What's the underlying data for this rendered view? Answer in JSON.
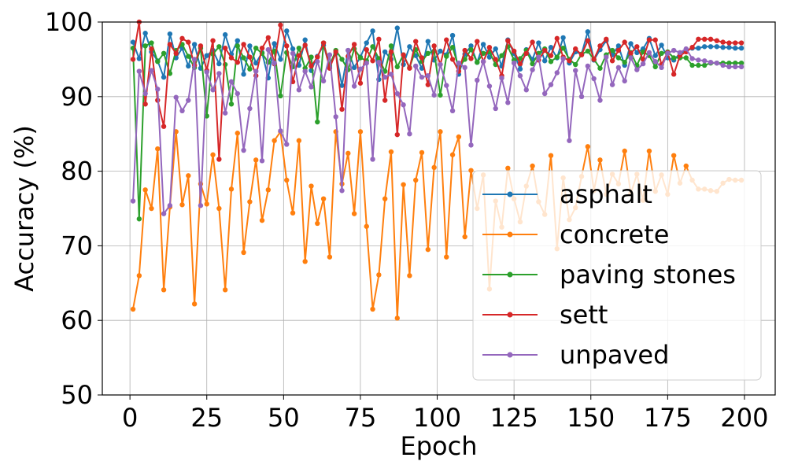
{
  "chart_data": {
    "type": "line",
    "title": "",
    "xlabel": "Epoch",
    "ylabel": "Accuracy (%)",
    "xlim": [
      -9,
      210
    ],
    "ylim": [
      50,
      100
    ],
    "xticks": [
      0,
      25,
      50,
      75,
      100,
      125,
      150,
      175,
      200
    ],
    "yticks": [
      50,
      60,
      70,
      80,
      90,
      100
    ],
    "grid": true,
    "legend": "lower-right",
    "markers": true,
    "series": [
      {
        "name": "asphalt",
        "color": "#1f77b4",
        "x": [
          1,
          3,
          5,
          7,
          9,
          11,
          13,
          15,
          17,
          19,
          21,
          23,
          25,
          27,
          29,
          31,
          33,
          35,
          37,
          39,
          41,
          43,
          45,
          47,
          49,
          51,
          53,
          55,
          57,
          59,
          61,
          63,
          65,
          67,
          69,
          71,
          73,
          75,
          77,
          79,
          81,
          83,
          85,
          87,
          89,
          91,
          93,
          95,
          97,
          99,
          101,
          103,
          105,
          107,
          109,
          111,
          113,
          115,
          117,
          119,
          121,
          123,
          125,
          127,
          129,
          131,
          133,
          135,
          137,
          139,
          141,
          143,
          145,
          147,
          149,
          151,
          153,
          155,
          157,
          159,
          161,
          163,
          165,
          167,
          169,
          171,
          173,
          175,
          177,
          179,
          181,
          183,
          185,
          187,
          189,
          191,
          193,
          195,
          197,
          199
        ],
        "y": [
          97.3,
          95.1,
          98.5,
          96.0,
          94.8,
          92.6,
          98.4,
          95.2,
          96.5,
          94.1,
          97.0,
          93.8,
          95.5,
          96.2,
          94.4,
          98.3,
          95.7,
          97.5,
          93.0,
          96.8,
          94.5,
          95.9,
          92.5,
          97.1,
          95.0,
          98.8,
          96.4,
          94.2,
          97.6,
          93.5,
          95.4,
          96.9,
          94.0,
          95.8,
          91.5,
          96.2,
          93.9,
          95.3,
          97.2,
          98.8,
          92.3,
          96.0,
          95.0,
          99.2,
          94.3,
          96.7,
          95.5,
          93.8,
          97.4,
          94.9,
          96.1,
          95.6,
          98.2,
          93.0,
          95.7,
          96.8,
          94.6,
          97.0,
          95.3,
          96.4,
          94.1,
          97.6,
          95.8,
          93.7,
          96.3,
          95.0,
          97.2,
          94.8,
          96.6,
          95.2,
          97.9,
          94.5,
          96.0,
          95.7,
          98.7,
          94.9,
          96.3,
          97.5,
          95.6,
          96.8,
          94.2,
          97.1,
          95.9,
          96.4,
          97.8,
          95.5,
          96.9,
          95.2,
          94.9,
          95.8,
          96.2,
          96.5,
          96.5,
          96.7,
          96.7,
          96.7,
          96.6,
          96.6,
          96.5,
          96.5
        ]
      },
      {
        "name": "concrete",
        "color": "#ff7f0e",
        "x": [
          1,
          3,
          5,
          7,
          9,
          11,
          13,
          15,
          17,
          19,
          21,
          23,
          25,
          27,
          29,
          31,
          33,
          35,
          37,
          39,
          41,
          43,
          45,
          47,
          49,
          51,
          53,
          55,
          57,
          59,
          61,
          63,
          65,
          67,
          69,
          71,
          73,
          75,
          77,
          79,
          81,
          83,
          85,
          87,
          89,
          91,
          93,
          95,
          97,
          99,
          101,
          103,
          105,
          107,
          109,
          111,
          113,
          115,
          117,
          119,
          121,
          123,
          125,
          127,
          129,
          131,
          133,
          135,
          137,
          139,
          141,
          143,
          145,
          147,
          149,
          151,
          153,
          155,
          157,
          159,
          161,
          163,
          165,
          167,
          169,
          171,
          173,
          175,
          177,
          179,
          181,
          183,
          185,
          187,
          189,
          191,
          193,
          195,
          197,
          199
        ],
        "y": [
          61.5,
          66.0,
          77.5,
          75.0,
          83.0,
          64.1,
          75.2,
          85.3,
          75.5,
          79.4,
          62.2,
          78.3,
          75.6,
          82.2,
          75.0,
          64.1,
          77.6,
          85.1,
          69.1,
          75.9,
          81.5,
          73.4,
          77.5,
          84.1,
          85.3,
          78.8,
          74.4,
          84.1,
          67.9,
          78.0,
          73.0,
          76.3,
          68.5,
          85.3,
          78.3,
          82.4,
          74.3,
          85.3,
          72.6,
          61.5,
          66.1,
          76.3,
          82.6,
          60.3,
          78.2,
          66.0,
          78.8,
          82.5,
          69.5,
          80.5,
          85.3,
          68.5,
          82.2,
          84.6,
          71.2,
          80.1,
          75.0,
          79.5,
          64.2,
          76.0,
          72.5,
          80.4,
          76.3,
          73.2,
          78.0,
          80.7,
          75.9,
          74.2,
          82.1,
          69.6,
          79.1,
          73.5,
          75.1,
          79.3,
          83.3,
          77.4,
          81.5,
          76.9,
          79.6,
          78.3,
          82.7,
          77.0,
          79.6,
          76.1,
          82.7,
          77.3,
          79.5,
          76.9,
          82.1,
          78.4,
          80.7,
          78.8,
          77.6,
          77.6,
          77.4,
          77.3,
          78.4,
          78.9,
          78.8,
          78.8
        ]
      },
      {
        "name": "paving stones",
        "color": "#2ca02c",
        "x": [
          1,
          3,
          5,
          7,
          9,
          11,
          13,
          15,
          17,
          19,
          21,
          23,
          25,
          27,
          29,
          31,
          33,
          35,
          37,
          39,
          41,
          43,
          45,
          47,
          49,
          51,
          53,
          55,
          57,
          59,
          61,
          63,
          65,
          67,
          69,
          71,
          73,
          75,
          77,
          79,
          81,
          83,
          85,
          87,
          89,
          91,
          93,
          95,
          97,
          99,
          101,
          103,
          105,
          107,
          109,
          111,
          113,
          115,
          117,
          119,
          121,
          123,
          125,
          127,
          129,
          131,
          133,
          135,
          137,
          139,
          141,
          143,
          145,
          147,
          149,
          151,
          153,
          155,
          157,
          159,
          161,
          163,
          165,
          167,
          169,
          171,
          173,
          175,
          177,
          179,
          181,
          183,
          185,
          187,
          189,
          191,
          193,
          195,
          197,
          199
        ],
        "y": [
          96.5,
          73.6,
          96.8,
          97.2,
          94.7,
          95.8,
          93.1,
          96.2,
          97.0,
          95.4,
          93.9,
          96.5,
          87.4,
          95.7,
          96.7,
          94.3,
          89.0,
          96.8,
          95.2,
          93.7,
          96.5,
          95.8,
          94.6,
          96.1,
          90.1,
          95.9,
          94.0,
          96.5,
          93.8,
          95.3,
          86.6,
          97.2,
          94.2,
          96.2,
          95.0,
          93.6,
          96.4,
          95.2,
          94.8,
          96.7,
          95.1,
          93.4,
          96.8,
          94.0,
          95.6,
          93.9,
          96.3,
          94.7,
          95.8,
          96.1,
          90.2,
          95.4,
          96.6,
          93.9,
          95.0,
          96.3,
          94.6,
          95.8,
          96.0,
          94.3,
          95.5,
          96.7,
          94.9,
          95.1,
          96.2,
          94.4,
          95.8,
          96.4,
          94.7,
          95.3,
          96.5,
          95.0,
          94.3,
          95.7,
          96.1,
          95.0,
          93.8,
          95.6,
          96.2,
          95.2,
          94.6,
          95.9,
          94.2,
          96.0,
          95.5,
          94.0,
          95.8,
          96.0,
          95.2,
          95.2,
          95.2,
          94.2,
          94.2,
          94.2,
          94.5,
          94.5,
          94.5,
          94.5,
          94.5,
          94.5
        ]
      },
      {
        "name": "sett",
        "color": "#d62728",
        "x": [
          1,
          3,
          5,
          7,
          9,
          11,
          13,
          15,
          17,
          19,
          21,
          23,
          25,
          27,
          29,
          31,
          33,
          35,
          37,
          39,
          41,
          43,
          45,
          47,
          49,
          51,
          53,
          55,
          57,
          59,
          61,
          63,
          65,
          67,
          69,
          71,
          73,
          75,
          77,
          79,
          81,
          83,
          85,
          87,
          89,
          91,
          93,
          95,
          97,
          99,
          101,
          103,
          105,
          107,
          109,
          111,
          113,
          115,
          117,
          119,
          121,
          123,
          125,
          127,
          129,
          131,
          133,
          135,
          137,
          139,
          141,
          143,
          145,
          147,
          149,
          151,
          153,
          155,
          157,
          159,
          161,
          163,
          165,
          167,
          169,
          171,
          173,
          175,
          177,
          179,
          181,
          183,
          185,
          187,
          189,
          191,
          193,
          195,
          197,
          199
        ],
        "y": [
          95.0,
          100.0,
          89.0,
          96.4,
          89.5,
          86.0,
          97.0,
          95.8,
          97.8,
          97.3,
          94.2,
          96.8,
          93.5,
          97.5,
          81.6,
          96.5,
          95.2,
          94.6,
          97.0,
          95.3,
          92.8,
          96.5,
          97.9,
          94.4,
          99.6,
          96.8,
          92.0,
          95.5,
          96.9,
          94.1,
          95.3,
          97.2,
          93.8,
          96.0,
          88.3,
          95.4,
          97.0,
          91.8,
          96.3,
          94.8,
          97.7,
          89.5,
          96.0,
          84.9,
          95.6,
          93.8,
          97.4,
          95.2,
          91.6,
          96.8,
          94.3,
          97.6,
          95.0,
          93.4,
          96.2,
          95.1,
          97.4,
          94.7,
          96.6,
          95.0,
          92.8,
          97.5,
          96.1,
          94.4,
          95.8,
          97.3,
          94.9,
          96.2,
          95.5,
          97.8,
          95.3,
          94.8,
          96.4,
          95.6,
          97.5,
          95.0,
          96.8,
          97.7,
          94.8,
          96.2,
          97.3,
          95.8,
          96.7,
          95.0,
          97.6,
          97.6,
          94.3,
          95.9,
          93.0,
          95.5,
          96.0,
          96.6,
          97.7,
          97.7,
          97.7,
          97.5,
          97.3,
          97.2,
          97.2,
          97.2
        ]
      },
      {
        "name": "unpaved",
        "color": "#9467bd",
        "x": [
          1,
          3,
          5,
          7,
          9,
          11,
          13,
          15,
          17,
          19,
          21,
          23,
          25,
          27,
          29,
          31,
          33,
          35,
          37,
          39,
          41,
          43,
          45,
          47,
          49,
          51,
          53,
          55,
          57,
          59,
          61,
          63,
          65,
          67,
          69,
          71,
          73,
          75,
          77,
          79,
          81,
          83,
          85,
          87,
          89,
          91,
          93,
          95,
          97,
          99,
          101,
          103,
          105,
          107,
          109,
          111,
          113,
          115,
          117,
          119,
          121,
          123,
          125,
          127,
          129,
          131,
          133,
          135,
          137,
          139,
          141,
          143,
          145,
          147,
          149,
          151,
          153,
          155,
          157,
          159,
          161,
          163,
          165,
          167,
          169,
          171,
          173,
          175,
          177,
          179,
          181,
          183,
          185,
          187,
          189,
          191,
          193,
          195,
          197,
          199
        ],
        "y": [
          76.0,
          93.4,
          90.4,
          93.5,
          91.0,
          74.3,
          75.4,
          89.9,
          88.1,
          89.5,
          95.0,
          75.4,
          93.3,
          90.9,
          93.1,
          87.8,
          92.0,
          90.4,
          82.8,
          88.4,
          93.4,
          81.4,
          96.3,
          94.5,
          85.4,
          83.6,
          95.8,
          90.9,
          93.4,
          91.3,
          94.7,
          92.1,
          95.6,
          87.3,
          77.4,
          96.2,
          91.4,
          93.7,
          94.5,
          81.6,
          94.6,
          92.6,
          93.0,
          90.4,
          88.9,
          85.0,
          94.1,
          92.6,
          92.8,
          90.2,
          94.3,
          91.5,
          88.1,
          94.5,
          93.9,
          83.5,
          92.2,
          94.7,
          91.4,
          88.4,
          92.5,
          89.2,
          94.5,
          92.8,
          90.9,
          93.6,
          95.3,
          90.4,
          91.6,
          93.2,
          95.1,
          84.1,
          93.5,
          90.0,
          94.1,
          92.4,
          89.5,
          95.3,
          91.6,
          93.9,
          92.1,
          95.2,
          93.6,
          94.4,
          95.9,
          94.7,
          93.9,
          95.8,
          96.2,
          95.9,
          96.4,
          95.1,
          94.9,
          94.8,
          94.6,
          94.5,
          94.2,
          94.0,
          94.0,
          94.0
        ]
      }
    ]
  }
}
